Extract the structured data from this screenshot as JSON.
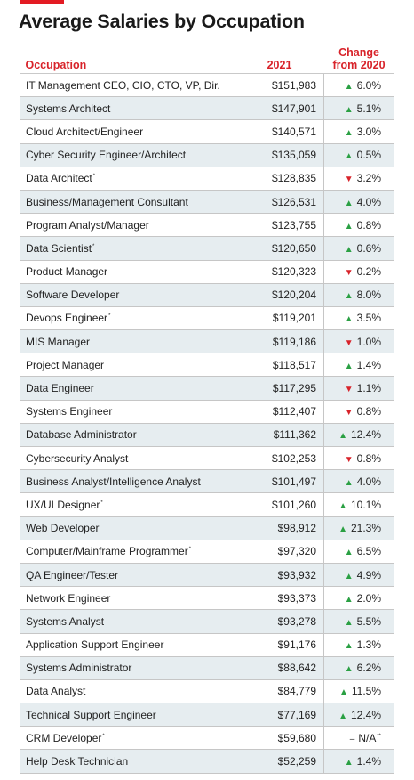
{
  "title": "Average Salaries by Occupation",
  "headers": {
    "occupation": "Occupation",
    "year": "2021",
    "change_line1": "Change",
    "change_line2": "from 2020"
  },
  "colors": {
    "accent": "#d8232a",
    "up": "#2aa043",
    "down": "#d8232a",
    "stripe": "#e6edf0"
  },
  "rows": [
    {
      "occupation": "IT Management CEO, CIO, CTO, VP, Dir.",
      "note": "",
      "salary": "$151,983",
      "direction": "up",
      "change": "6.0%"
    },
    {
      "occupation": "Systems Architect",
      "note": "",
      "salary": "$147,901",
      "direction": "up",
      "change": "5.1%"
    },
    {
      "occupation": "Cloud Architect/Engineer",
      "note": "",
      "salary": "$140,571",
      "direction": "up",
      "change": "3.0%"
    },
    {
      "occupation": "Cyber Security Engineer/Architect",
      "note": "",
      "salary": "$135,059",
      "direction": "up",
      "change": "0.5%"
    },
    {
      "occupation": "Data Architect",
      "note": "*",
      "salary": "$128,835",
      "direction": "down",
      "change": "3.2%"
    },
    {
      "occupation": "Business/Management Consultant",
      "note": "",
      "salary": "$126,531",
      "direction": "up",
      "change": "4.0%"
    },
    {
      "occupation": "Program Analyst/Manager",
      "note": "",
      "salary": "$123,755",
      "direction": "up",
      "change": "0.8%"
    },
    {
      "occupation": "Data Scientist",
      "note": "*",
      "salary": "$120,650",
      "direction": "up",
      "change": "0.6%"
    },
    {
      "occupation": "Product Manager",
      "note": "",
      "salary": "$120,323",
      "direction": "down",
      "change": "0.2%"
    },
    {
      "occupation": "Software Developer",
      "note": "",
      "salary": "$120,204",
      "direction": "up",
      "change": "8.0%"
    },
    {
      "occupation": "Devops Engineer",
      "note": "*",
      "salary": "$119,201",
      "direction": "up",
      "change": "3.5%"
    },
    {
      "occupation": "MIS Manager",
      "note": "",
      "salary": "$119,186",
      "direction": "down",
      "change": "1.0%"
    },
    {
      "occupation": "Project Manager",
      "note": "",
      "salary": "$118,517",
      "direction": "up",
      "change": "1.4%"
    },
    {
      "occupation": "Data Engineer",
      "note": "",
      "salary": "$117,295",
      "direction": "down",
      "change": "1.1%"
    },
    {
      "occupation": "Systems Engineer",
      "note": "",
      "salary": "$112,407",
      "direction": "down",
      "change": "0.8%"
    },
    {
      "occupation": "Database Administrator",
      "note": "",
      "salary": "$111,362",
      "direction": "up",
      "change": "12.4%"
    },
    {
      "occupation": "Cybersecurity Analyst",
      "note": "",
      "salary": "$102,253",
      "direction": "down",
      "change": "0.8%"
    },
    {
      "occupation": "Business Analyst/Intelligence Analyst",
      "note": "",
      "salary": "$101,497",
      "direction": "up",
      "change": "4.0%"
    },
    {
      "occupation": "UX/UI Designer",
      "note": "*",
      "salary": "$101,260",
      "direction": "up",
      "change": "10.1%"
    },
    {
      "occupation": "Web Developer",
      "note": "",
      "salary": "$98,912",
      "direction": "up",
      "change": "21.3%"
    },
    {
      "occupation": "Computer/Mainframe Programmer",
      "note": "*",
      "salary": "$97,320",
      "direction": "up",
      "change": "6.5%"
    },
    {
      "occupation": "QA Engineer/Tester",
      "note": "",
      "salary": "$93,932",
      "direction": "up",
      "change": "4.9%"
    },
    {
      "occupation": "Network Engineer",
      "note": "",
      "salary": "$93,373",
      "direction": "up",
      "change": "2.0%"
    },
    {
      "occupation": "Systems Analyst",
      "note": "",
      "salary": "$93,278",
      "direction": "up",
      "change": "5.5%"
    },
    {
      "occupation": "Application Support Engineer",
      "note": "",
      "salary": "$91,176",
      "direction": "up",
      "change": "1.3%"
    },
    {
      "occupation": "Systems Administrator",
      "note": "",
      "salary": "$88,642",
      "direction": "up",
      "change": "6.2%"
    },
    {
      "occupation": "Data Analyst",
      "note": "",
      "salary": "$84,779",
      "direction": "up",
      "change": "11.5%"
    },
    {
      "occupation": "Technical Support Engineer",
      "note": "",
      "salary": "$77,169",
      "direction": "up",
      "change": "12.4%"
    },
    {
      "occupation": "CRM Developer",
      "note": "*",
      "salary": "$59,680",
      "direction": "none",
      "change": "N/A",
      "change_note": "**"
    },
    {
      "occupation": "Help Desk Technician",
      "note": "",
      "salary": "$52,259",
      "direction": "up",
      "change": "1.4%"
    }
  ]
}
